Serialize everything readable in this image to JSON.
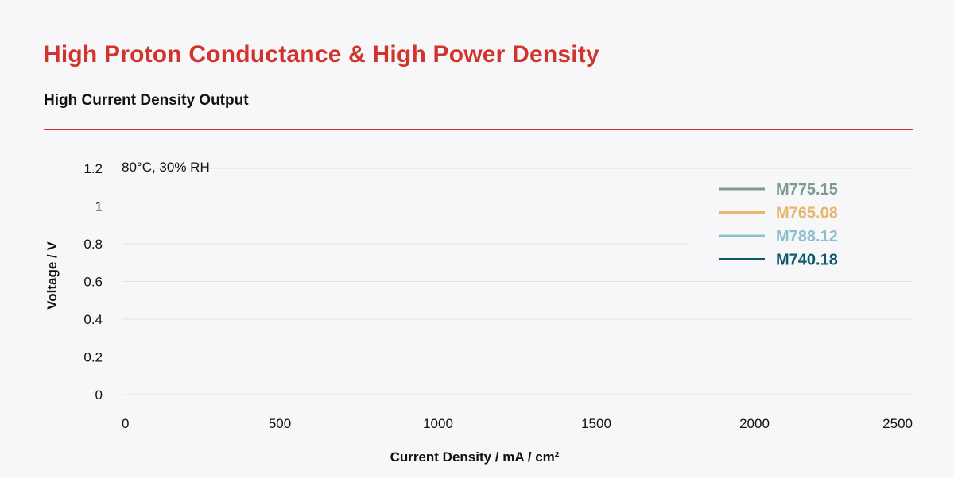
{
  "header": {
    "title": "High Proton Conductance & High Power Density",
    "subtitle": "High Current Density Output"
  },
  "colors": {
    "accent": "#d0342c",
    "grid": "#e3e3e6",
    "text": "#111111"
  },
  "chart_data": {
    "type": "line",
    "title": "",
    "annotation": "80°C, 30% RH",
    "xlabel": "Current Density / mA / cm²",
    "ylabel": "Voltage / V",
    "xlim": [
      0,
      2500
    ],
    "ylim": [
      0,
      1.2
    ],
    "x_ticks": [
      0,
      500,
      1000,
      1500,
      2000,
      2500
    ],
    "x_tick_labels": [
      "0",
      "500",
      "1000",
      "1500",
      "2000",
      "2500"
    ],
    "y_ticks": [
      0,
      0.2,
      0.4,
      0.6,
      0.8,
      1,
      1.2
    ],
    "y_tick_labels": [
      "0",
      "0.2",
      "0.4",
      "0.6",
      "0.8",
      "1",
      "1.2"
    ],
    "grid": true,
    "legend_position": "top-right",
    "series": [
      {
        "name": "M775.15",
        "color": "#7d9990",
        "x": [],
        "y": []
      },
      {
        "name": "M765.08",
        "color": "#e6b76a",
        "x": [],
        "y": []
      },
      {
        "name": "M788.12",
        "color": "#8cbfcc",
        "x": [],
        "y": []
      },
      {
        "name": "M740.18",
        "color": "#0e5a6b",
        "x": [],
        "y": []
      }
    ]
  }
}
